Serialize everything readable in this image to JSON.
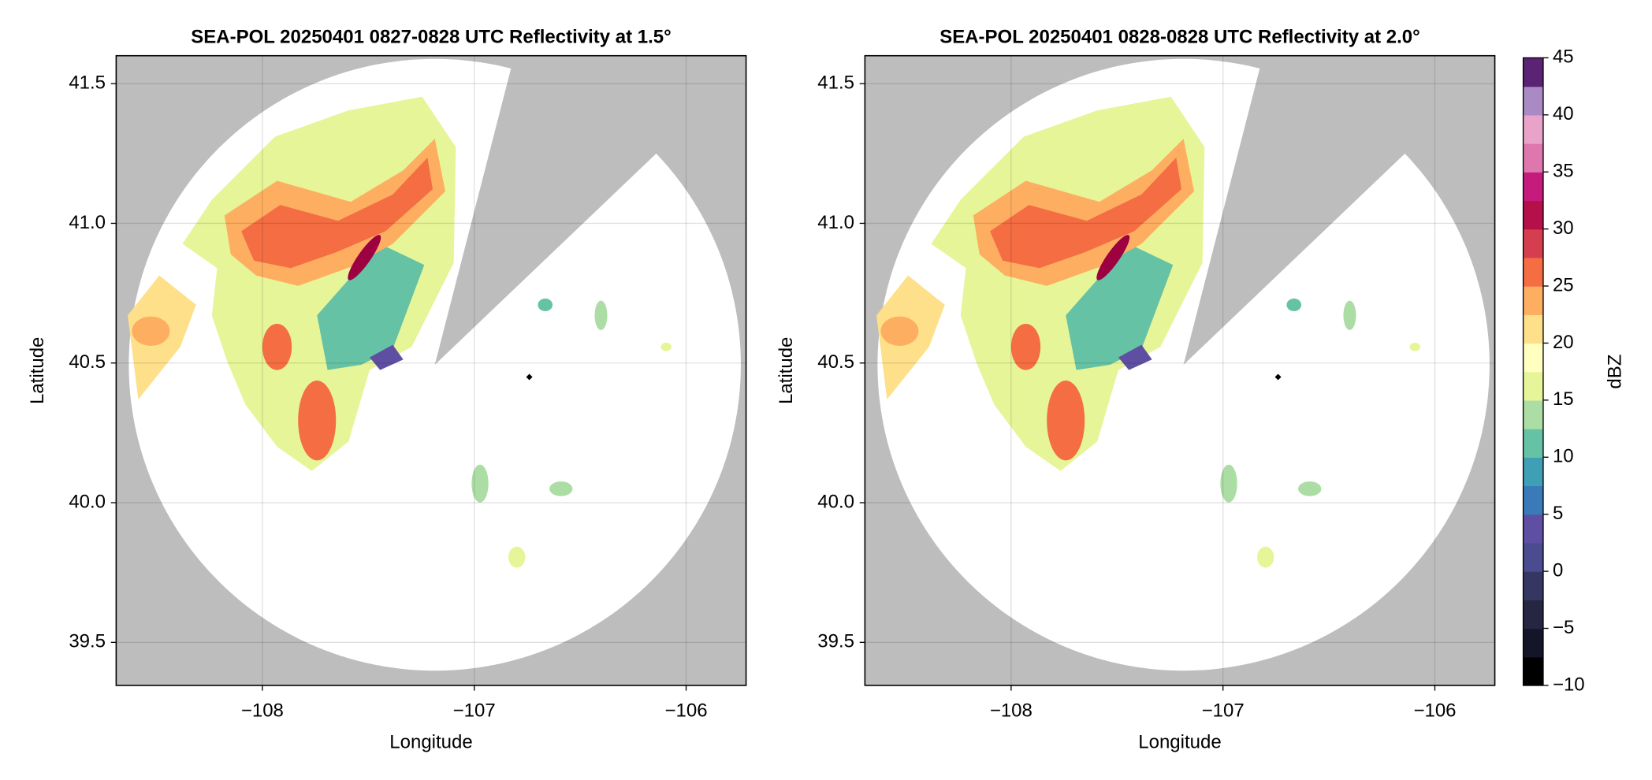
{
  "chart_data": [
    {
      "type": "radar-map",
      "title": "SEA-POL 20250401 0827-0828 UTC Reflectivity at 1.5°",
      "xlabel": "Longitude",
      "ylabel": "Latitude",
      "xlim": [
        -108.69,
        -105.717
      ],
      "ylim": [
        39.346,
        41.6
      ],
      "xticks": [
        {
          "value": -108,
          "label": "−108"
        },
        {
          "value": -107,
          "label": "−107"
        },
        {
          "value": -106,
          "label": "−106"
        }
      ],
      "yticks": [
        39.5,
        {
          "value": 40,
          "label": "40.0"
        },
        40.5,
        {
          "value": 41,
          "label": "41.0"
        },
        41.5
      ],
      "grid": true,
      "site_lon": -106.74,
      "site_lat": 40.45
    },
    {
      "type": "radar-map",
      "title": "SEA-POL 20250401 0828-0828 UTC Reflectivity at 2.0°",
      "xlabel": "Longitude",
      "ylabel": "Latitude",
      "xlim": [
        -108.69,
        -105.717
      ],
      "ylim": [
        39.346,
        41.6
      ],
      "xticks": [
        {
          "value": -108,
          "label": "−108"
        },
        {
          "value": -107,
          "label": "−107"
        },
        {
          "value": -106,
          "label": "−106"
        }
      ],
      "yticks": [
        39.5,
        {
          "value": 40,
          "label": "40.0"
        },
        40.5,
        {
          "value": 41,
          "label": "41.0"
        },
        41.5
      ],
      "grid": true,
      "site_lon": -106.74,
      "site_lat": 40.45
    },
    {
      "type": "colorbar",
      "label": "dBZ",
      "ylim": [
        -10,
        45
      ],
      "yticks": [
        {
          "value": -10,
          "label": "−10"
        },
        {
          "value": -5,
          "label": "−5"
        },
        0,
        5,
        10,
        15,
        20,
        25,
        30,
        35,
        40,
        45
      ],
      "colors": [
        "#000000",
        "#15152a",
        "#262642",
        "#363662",
        "#4b4b8f",
        "#5e4fa2",
        "#3a7ab8",
        "#3f9fb5",
        "#66c2a5",
        "#abdda4",
        "#e6f598",
        "#ffffbf",
        "#fee08b",
        "#fdae61",
        "#f46d43",
        "#d53e4f",
        "#b5104a",
        "#c51b7d",
        "#de77ae",
        "#e9a3c9",
        "#a98ac4",
        "#5a2373"
      ]
    }
  ]
}
